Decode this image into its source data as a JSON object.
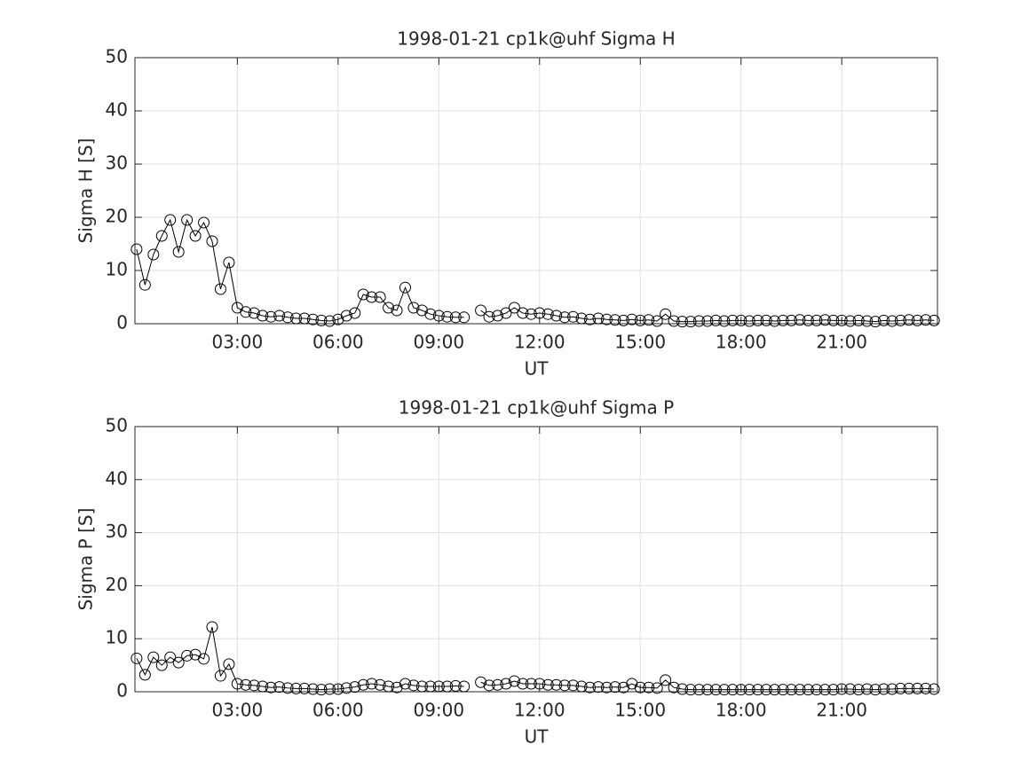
{
  "chart_data": [
    {
      "type": "line",
      "title": "1998-01-21  cp1k@uhf Sigma H",
      "xlabel": "UT",
      "ylabel": "Sigma H [S]",
      "x": [
        0,
        0.25,
        0.5,
        0.75,
        1,
        1.25,
        1.5,
        1.75,
        2,
        2.25,
        2.5,
        2.75,
        3,
        3.25,
        3.5,
        3.75,
        4,
        4.25,
        4.5,
        4.75,
        5,
        5.25,
        5.5,
        5.75,
        6,
        6.25,
        6.5,
        6.75,
        7,
        7.25,
        7.5,
        7.75,
        8,
        8.25,
        8.5,
        8.75,
        9,
        9.25,
        9.5,
        9.75,
        10,
        10.25,
        10.5,
        10.75,
        11,
        11.25,
        11.5,
        11.75,
        12,
        12.25,
        12.5,
        12.75,
        13,
        13.25,
        13.5,
        13.75,
        14,
        14.25,
        14.5,
        14.75,
        15,
        15.25,
        15.5,
        15.75,
        16,
        16.25,
        16.5,
        16.75,
        17,
        17.25,
        17.5,
        17.75,
        18,
        18.25,
        18.5,
        18.75,
        19,
        19.25,
        19.5,
        19.75,
        20,
        20.25,
        20.5,
        20.75,
        21,
        21.25,
        21.5,
        21.75,
        22,
        22.25,
        22.5,
        22.75,
        23,
        23.25,
        23.5,
        23.75
      ],
      "series": [
        {
          "color": "#000000",
          "marker": "circle",
          "values": [
            14,
            7.3,
            13,
            16.5,
            19.5,
            13.5,
            19.5,
            16.5,
            19,
            15.5,
            6.5,
            11.5,
            3,
            2.2,
            2,
            1.5,
            1.3,
            1.5,
            1.2,
            1,
            1,
            0.8,
            0.6,
            0.5,
            0.8,
            1.5,
            2,
            5.5,
            5,
            5,
            3,
            2.5,
            6.8,
            3,
            2.5,
            1.8,
            1.5,
            1.3,
            1.2,
            1.2,
            null,
            2.5,
            1.3,
            1.5,
            2,
            3,
            2,
            1.8,
            2,
            1.8,
            1.5,
            1.2,
            1.3,
            1,
            0.8,
            1,
            0.8,
            0.7,
            0.6,
            0.8,
            0.6,
            0.7,
            0.5,
            1.8,
            0.5,
            0.4,
            0.4,
            0.5,
            0.5,
            0.6,
            0.5,
            0.6,
            0.6,
            0.5,
            0.6,
            0.6,
            0.5,
            0.6,
            0.6,
            0.7,
            0.6,
            0.6,
            0.7,
            0.6,
            0.6,
            0.5,
            0.6,
            0.5,
            0.4,
            0.6,
            0.5,
            0.6,
            0.7,
            0.6,
            0.7,
            0.6
          ]
        }
      ],
      "xlim": [
        -0.05,
        23.85
      ],
      "ylim": [
        0,
        50
      ],
      "xticks": [
        {
          "value": 3,
          "label": "03:00"
        },
        {
          "value": 6,
          "label": "06:00"
        },
        {
          "value": 9,
          "label": "09:00"
        },
        {
          "value": 12,
          "label": "12:00"
        },
        {
          "value": 15,
          "label": "15:00"
        },
        {
          "value": 18,
          "label": "18:00"
        },
        {
          "value": 21,
          "label": "21:00"
        }
      ],
      "yticks": [
        0,
        10,
        20,
        30,
        40,
        50
      ],
      "grid": true
    },
    {
      "type": "line",
      "title": "1998-01-21  cp1k@uhf Sigma P",
      "xlabel": "UT",
      "ylabel": "Sigma P [S]",
      "x": [
        0,
        0.25,
        0.5,
        0.75,
        1,
        1.25,
        1.5,
        1.75,
        2,
        2.25,
        2.5,
        2.75,
        3,
        3.25,
        3.5,
        3.75,
        4,
        4.25,
        4.5,
        4.75,
        5,
        5.25,
        5.5,
        5.75,
        6,
        6.25,
        6.5,
        6.75,
        7,
        7.25,
        7.5,
        7.75,
        8,
        8.25,
        8.5,
        8.75,
        9,
        9.25,
        9.5,
        9.75,
        10,
        10.25,
        10.5,
        10.75,
        11,
        11.25,
        11.5,
        11.75,
        12,
        12.25,
        12.5,
        12.75,
        13,
        13.25,
        13.5,
        13.75,
        14,
        14.25,
        14.5,
        14.75,
        15,
        15.25,
        15.5,
        15.75,
        16,
        16.25,
        16.5,
        16.75,
        17,
        17.25,
        17.5,
        17.75,
        18,
        18.25,
        18.5,
        18.75,
        19,
        19.25,
        19.5,
        19.75,
        20,
        20.25,
        20.5,
        20.75,
        21,
        21.25,
        21.5,
        21.75,
        22,
        22.25,
        22.5,
        22.75,
        23,
        23.25,
        23.5,
        23.75
      ],
      "series": [
        {
          "color": "#000000",
          "marker": "circle",
          "values": [
            6.3,
            3.2,
            6.5,
            5,
            6.5,
            5.5,
            6.8,
            7,
            6.2,
            12.2,
            3,
            5.2,
            1.5,
            1.3,
            1.2,
            1,
            0.8,
            0.9,
            0.7,
            0.6,
            0.6,
            0.5,
            0.4,
            0.5,
            0.5,
            0.7,
            0.9,
            1.3,
            1.5,
            1.3,
            1,
            0.8,
            1.5,
            1.2,
            1,
            1,
            1,
            1,
            1.1,
            1,
            null,
            1.8,
            1.2,
            1.3,
            1.5,
            2,
            1.5,
            1.5,
            1.5,
            1.3,
            1.3,
            1.2,
            1.2,
            1,
            0.8,
            0.9,
            0.8,
            0.9,
            0.8,
            1.5,
            0.8,
            0.8,
            0.7,
            2.2,
            0.8,
            0.5,
            0.4,
            0.4,
            0.4,
            0.4,
            0.4,
            0.4,
            0.4,
            0.4,
            0.4,
            0.4,
            0.4,
            0.4,
            0.4,
            0.4,
            0.4,
            0.4,
            0.4,
            0.4,
            0.5,
            0.5,
            0.4,
            0.5,
            0.4,
            0.5,
            0.5,
            0.6,
            0.6,
            0.6,
            0.6,
            0.5
          ]
        }
      ],
      "xlim": [
        -0.05,
        23.85
      ],
      "ylim": [
        0,
        50
      ],
      "xticks": [
        {
          "value": 3,
          "label": "03:00"
        },
        {
          "value": 6,
          "label": "06:00"
        },
        {
          "value": 9,
          "label": "09:00"
        },
        {
          "value": 12,
          "label": "12:00"
        },
        {
          "value": 15,
          "label": "15:00"
        },
        {
          "value": 18,
          "label": "18:00"
        },
        {
          "value": 21,
          "label": "21:00"
        }
      ],
      "yticks": [
        0,
        10,
        20,
        30,
        40,
        50
      ],
      "grid": true
    }
  ]
}
